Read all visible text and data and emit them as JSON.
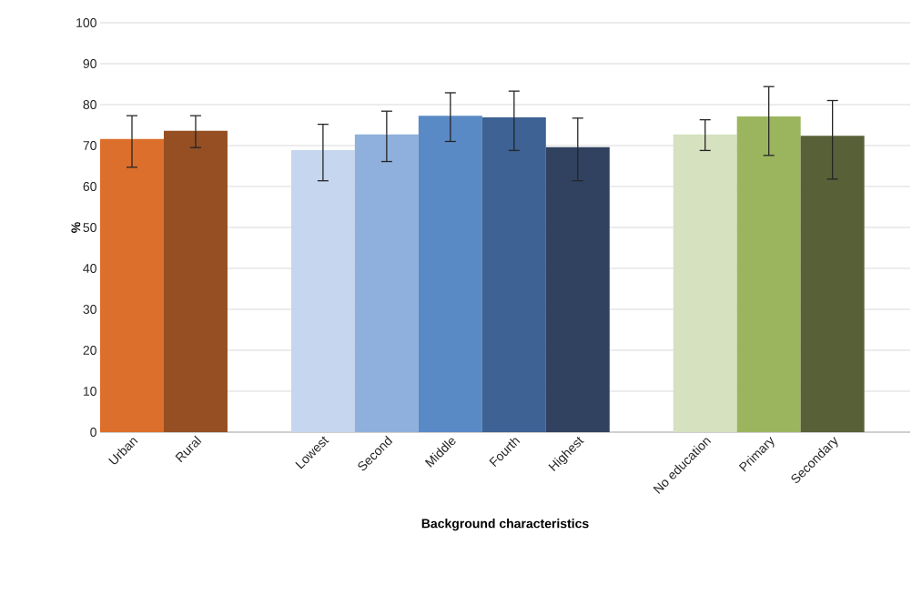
{
  "chart_data": {
    "type": "bar",
    "xlabel": "Background characteristics",
    "ylabel": "%",
    "categories": [
      "Urban",
      "Rural",
      null,
      "Lowest",
      "Second",
      "Middle",
      "Fourth",
      "Highest",
      null,
      "No education",
      "Primary",
      "Secondary"
    ],
    "values": [
      71.6,
      73.6,
      null,
      68.9,
      72.7,
      77.3,
      76.9,
      69.6,
      null,
      72.7,
      77.1,
      72.4
    ],
    "errors": [
      [
        64.7,
        77.3
      ],
      [
        69.5,
        77.3
      ],
      null,
      [
        61.4,
        75.2
      ],
      [
        66.1,
        78.4
      ],
      [
        71.0,
        82.9
      ],
      [
        68.8,
        83.3
      ],
      [
        61.4,
        76.7
      ],
      null,
      [
        68.8,
        76.3
      ],
      [
        67.6,
        84.4
      ],
      [
        61.8,
        81.0
      ]
    ],
    "colors": [
      "#dd6f2c",
      "#954f22",
      null,
      "#c5d6ee",
      "#8fb0dc",
      "#5a8ac6",
      "#3d6293",
      "#30425f",
      null,
      "#d6e1bf",
      "#9bb55f",
      "#586038"
    ],
    "ylim": [
      0,
      100
    ],
    "yticks": [
      0,
      10,
      20,
      30,
      40,
      50,
      60,
      70,
      80,
      90,
      100
    ],
    "grid": "y"
  }
}
